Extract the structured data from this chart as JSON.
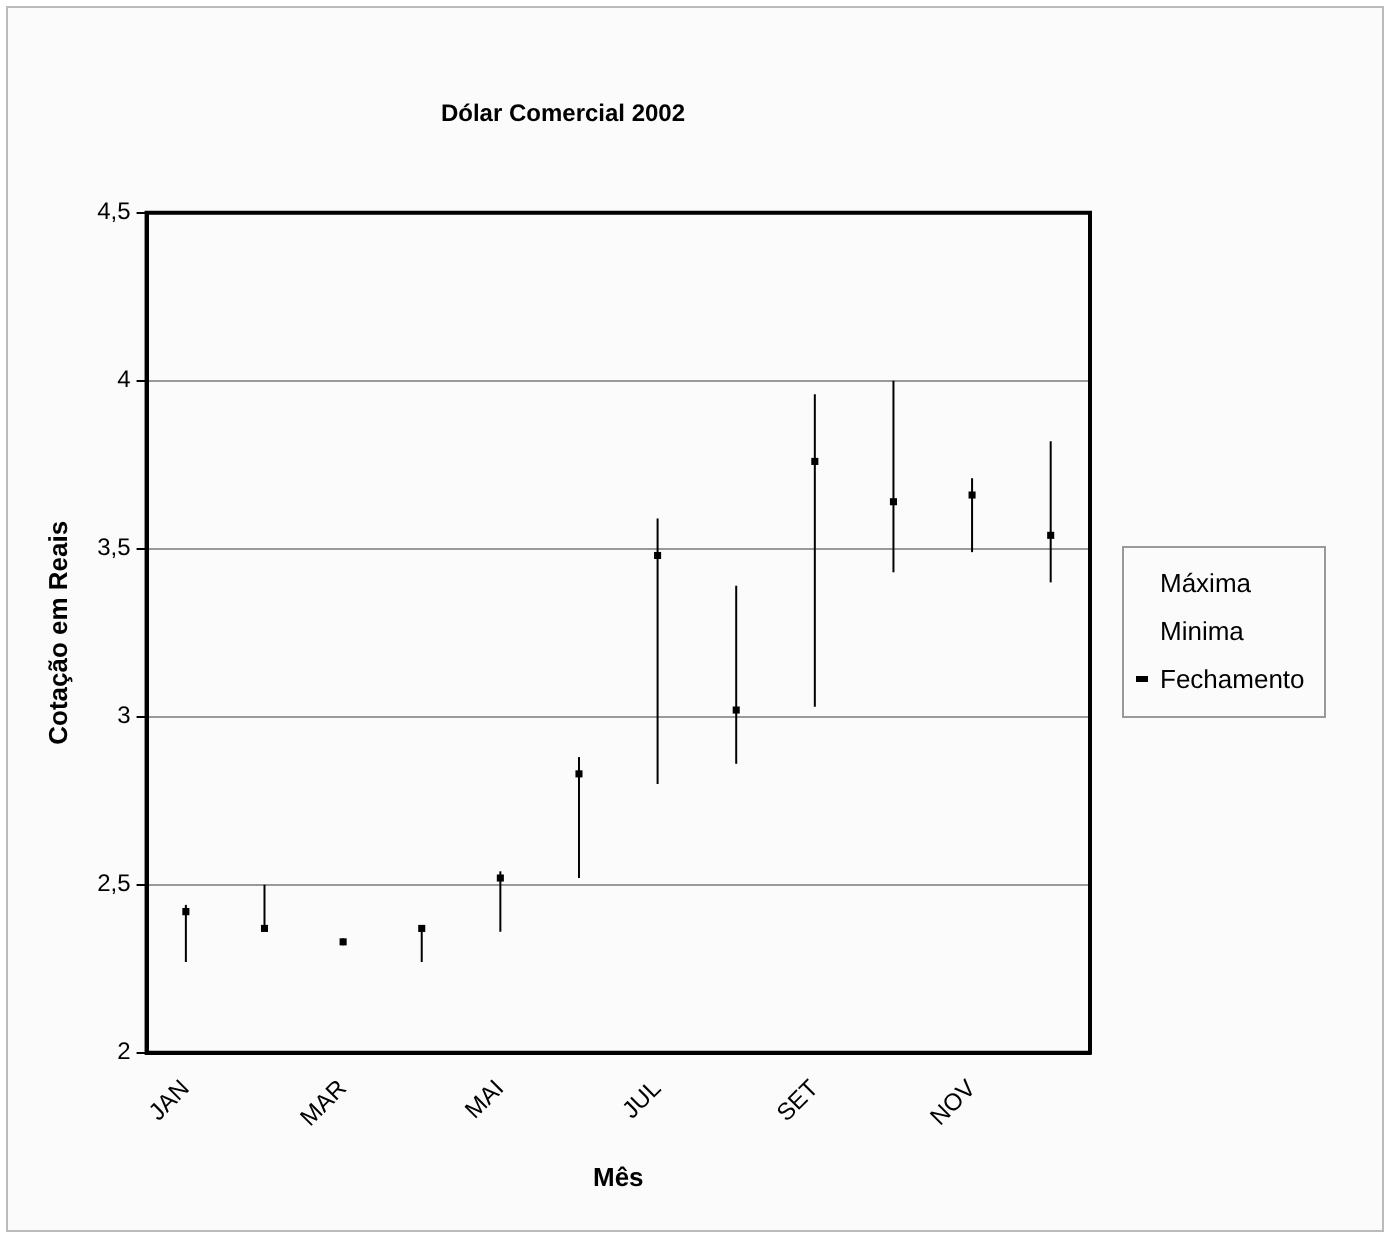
{
  "chart_data": {
    "type": "scatter",
    "title": "Dólar Comercial 2002",
    "xlabel": "Mês",
    "ylabel": "Cotação em Reais",
    "categories": [
      "JAN",
      null,
      "MAR",
      null,
      "MAI",
      null,
      "JUL",
      null,
      "SET",
      null,
      "NOV",
      null
    ],
    "series": [
      {
        "name": "Fechamento",
        "color": "#000000",
        "values": [
          2.42,
          2.37,
          2.33,
          2.37,
          2.52,
          2.83,
          3.48,
          3.02,
          3.76,
          3.64,
          3.66,
          3.54
        ],
        "errors": [
          [
            2.27,
            2.44
          ],
          [
            2.37,
            2.5
          ],
          [
            2.32,
            2.34
          ],
          [
            2.27,
            2.38
          ],
          [
            2.36,
            2.54
          ],
          [
            2.52,
            2.88
          ],
          [
            2.8,
            3.59
          ],
          [
            2.86,
            3.39
          ],
          [
            3.03,
            3.96
          ],
          [
            3.43,
            4.0
          ],
          [
            3.49,
            3.71
          ],
          [
            3.4,
            3.82
          ]
        ]
      }
    ],
    "annotations": [
      "Máxima",
      "Minima"
    ],
    "marker": "square",
    "ylim": [
      2,
      4.5
    ],
    "yticks": [
      2,
      {
        "value": 2.5,
        "label": "2,5"
      },
      3,
      {
        "value": 3.5,
        "label": "3,5"
      },
      4,
      {
        "value": 4.5,
        "label": "4,5"
      }
    ],
    "grid": "y",
    "legend": "right"
  }
}
